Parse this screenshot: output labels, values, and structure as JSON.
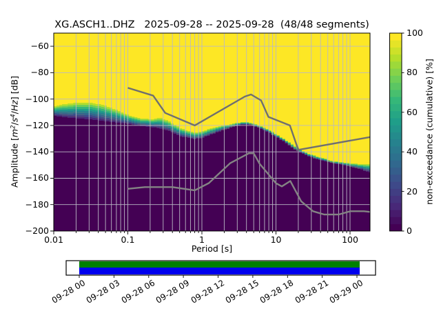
{
  "title": "XG.ASCH1..DHZ   2025-09-28 -- 2025-09-28  (48/48 segments)",
  "chart_data": {
    "type": "heatmap",
    "subtype": "ppsd-cumulative",
    "title": "XG.ASCH1..DHZ   2025-09-28 -- 2025-09-28  (48/48 segments)",
    "xlabel": "Period [s]",
    "ylabel": "Amplitude [m2/s4/Hz] [dB]",
    "ylabel_segments": [
      {
        "text": "Amplitude [",
        "style": "normal"
      },
      {
        "text": "m",
        "style": "italic"
      },
      {
        "text": "2",
        "style": "sup"
      },
      {
        "text": "/",
        "style": "normal"
      },
      {
        "text": "s",
        "style": "italic"
      },
      {
        "text": "4",
        "style": "sup"
      },
      {
        "text": "/",
        "style": "normal"
      },
      {
        "text": "Hz",
        "style": "italic"
      },
      {
        "text": "] [dB]",
        "style": "normal"
      }
    ],
    "xscale": "log",
    "xlim": [
      0.01,
      186
    ],
    "ylim": [
      -200,
      -50
    ],
    "grid": true,
    "x_ticks": [
      {
        "value": 0.01,
        "label": "0.01"
      },
      {
        "value": 0.1,
        "label": "0.1"
      },
      {
        "value": 1,
        "label": "1"
      },
      {
        "value": 10,
        "label": "10"
      },
      {
        "value": 100,
        "label": "100"
      }
    ],
    "y_ticks": [
      {
        "value": -60,
        "label": "−60"
      },
      {
        "value": -80,
        "label": "−80"
      },
      {
        "value": -100,
        "label": "−100"
      },
      {
        "value": -120,
        "label": "−120"
      },
      {
        "value": -140,
        "label": "−140"
      },
      {
        "value": -160,
        "label": "−160"
      },
      {
        "value": -180,
        "label": "−180"
      },
      {
        "value": -200,
        "label": "−200"
      }
    ],
    "colorbar": {
      "label": "non-exceedance (cumulative) [%]",
      "ticks": [
        {
          "value": 0,
          "label": "0"
        },
        {
          "value": 20,
          "label": "20"
        },
        {
          "value": 40,
          "label": "40"
        },
        {
          "value": 60,
          "label": "60"
        },
        {
          "value": 80,
          "label": "80"
        },
        {
          "value": 100,
          "label": "100"
        }
      ],
      "range": [
        0,
        100
      ],
      "steps": 28
    },
    "colors": {
      "background": "#ffffff",
      "heat_max": "#fde725",
      "heat_min": "#440154",
      "grid": "#b9b9c4",
      "frame": "#000000",
      "noise_model_high": "#6f6f6f",
      "noise_model_low": "#848484",
      "viridis_anchors": [
        "#440154",
        "#482878",
        "#3e4989",
        "#31688e",
        "#26828e",
        "#1f9e89",
        "#35b779",
        "#6ece58",
        "#b5de2b",
        "#fde725"
      ]
    },
    "ppsd_band_comment": "each row: [period_s, dB_top_of_distribution(yellow edge), dB_bottom_of_distribution(dark edge)]",
    "ppsd_band": [
      [
        0.01,
        -105.9,
        -112.7
      ],
      [
        0.014,
        -103.8,
        -113.8
      ],
      [
        0.02,
        -102.8,
        -114.5
      ],
      [
        0.029,
        -102.6,
        -115.3
      ],
      [
        0.045,
        -104.2,
        -116.4
      ],
      [
        0.07,
        -108.0,
        -117.8
      ],
      [
        0.105,
        -112.5,
        -119.0
      ],
      [
        0.15,
        -114.8,
        -120.5
      ],
      [
        0.22,
        -115.3,
        -121.6
      ],
      [
        0.27,
        -113.9,
        -122.3
      ],
      [
        0.35,
        -116.5,
        -124.0
      ],
      [
        0.5,
        -121.6,
        -128.0
      ],
      [
        0.65,
        -124.0,
        -129.5
      ],
      [
        0.8,
        -125.5,
        -130.4
      ],
      [
        1.0,
        -124.2,
        -129.5
      ],
      [
        1.4,
        -122.0,
        -126.5
      ],
      [
        2.0,
        -119.9,
        -123.4
      ],
      [
        2.8,
        -118.2,
        -120.8
      ],
      [
        3.5,
        -117.4,
        -119.2
      ],
      [
        4.5,
        -117.8,
        -119.5
      ],
      [
        6.0,
        -120.0,
        -121.8
      ],
      [
        8.0,
        -123.5,
        -125.5
      ],
      [
        10.0,
        -126.3,
        -128.6
      ],
      [
        14.0,
        -131.5,
        -133.8
      ],
      [
        20.0,
        -137.3,
        -139.9
      ],
      [
        28.0,
        -141.5,
        -143.8
      ],
      [
        40.0,
        -144.2,
        -146.2
      ],
      [
        55.0,
        -146.5,
        -148.3
      ],
      [
        70.0,
        -147.7,
        -149.4
      ],
      [
        100.0,
        -148.6,
        -151.2
      ],
      [
        140.0,
        -149.2,
        -153.5
      ],
      [
        186.0,
        -149.5,
        -155.8
      ]
    ],
    "noise_models": {
      "high": [
        [
          0.1,
          -91.5
        ],
        [
          0.22,
          -97.4
        ],
        [
          0.32,
          -110.5
        ],
        [
          0.8,
          -120.0
        ],
        [
          3.8,
          -98.1
        ],
        [
          4.6,
          -96.5
        ],
        [
          6.3,
          -101.0
        ],
        [
          7.9,
          -113.5
        ],
        [
          15.4,
          -120.0
        ],
        [
          20.0,
          -138.5
        ],
        [
          186.0,
          -128.8
        ]
      ],
      "low": [
        [
          0.1,
          -168.0
        ],
        [
          0.17,
          -166.7
        ],
        [
          0.4,
          -166.7
        ],
        [
          0.8,
          -169.2
        ],
        [
          1.24,
          -163.7
        ],
        [
          2.4,
          -148.6
        ],
        [
          4.3,
          -141.1
        ],
        [
          5.0,
          -141.1
        ],
        [
          6.0,
          -149.0
        ],
        [
          10.0,
          -163.8
        ],
        [
          12.0,
          -166.2
        ],
        [
          15.6,
          -162.1
        ],
        [
          21.9,
          -177.5
        ],
        [
          31.6,
          -185.0
        ],
        [
          45.0,
          -187.5
        ],
        [
          70.0,
          -187.5
        ],
        [
          101.0,
          -185.0
        ],
        [
          154.0,
          -185.0
        ],
        [
          186.0,
          -185.5
        ]
      ]
    }
  },
  "timeline": {
    "tick_labels": [
      "09-28 00",
      "09-28 03",
      "09-28 06",
      "09-28 09",
      "09-28 12",
      "09-28 15",
      "09-28 18",
      "09-28 21",
      "09-29 00"
    ],
    "coverage_colors": {
      "top": "#008000",
      "bottom": "#0000ee"
    },
    "box_color": "#ffffff",
    "box_border": "#000000"
  }
}
